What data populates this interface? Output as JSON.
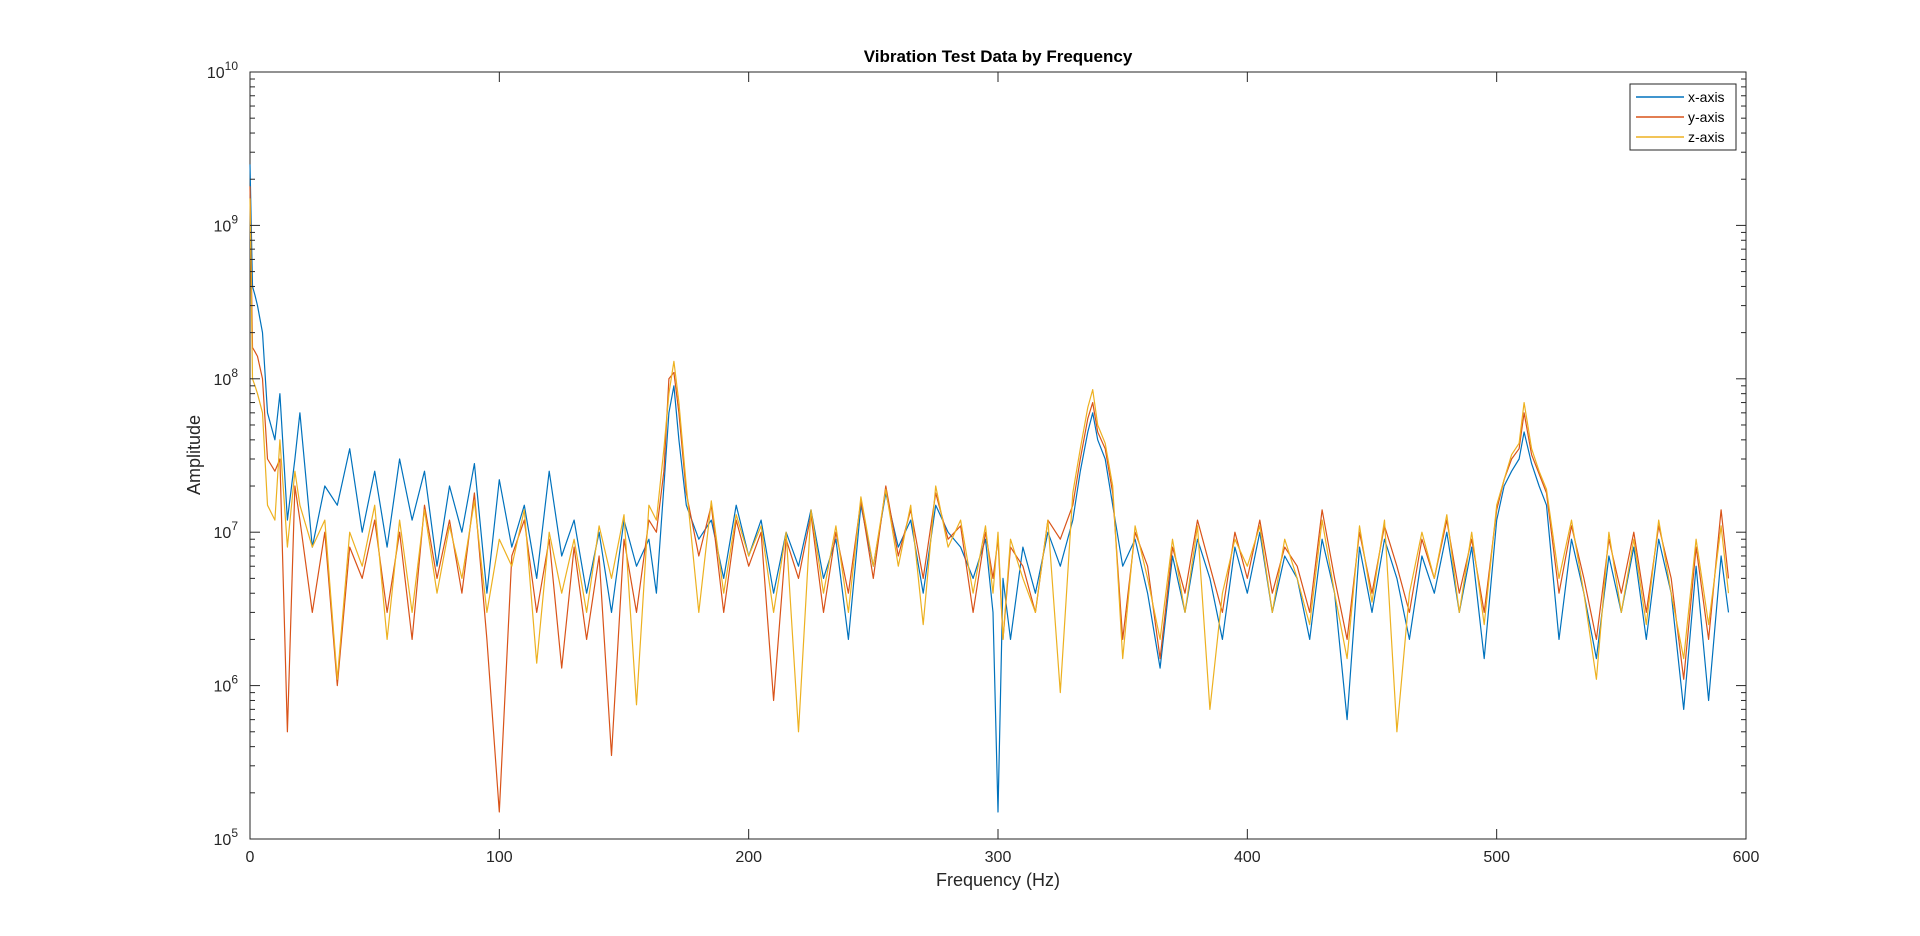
{
  "chart_data": {
    "type": "line",
    "title": "Vibration Test Data by Frequency",
    "xlabel": "Frequency (Hz)",
    "ylabel": "Amplitude",
    "xlim": [
      0,
      600
    ],
    "ylim": [
      100000,
      10000000000
    ],
    "yscale": "log",
    "grid": false,
    "legend_position": "top-right",
    "x_ticks": [
      0,
      100,
      200,
      300,
      400,
      500,
      600
    ],
    "y_ticks": [
      {
        "value": 100000,
        "base": "10",
        "exp": "5"
      },
      {
        "value": 1000000,
        "base": "10",
        "exp": "6"
      },
      {
        "value": 10000000,
        "base": "10",
        "exp": "7"
      },
      {
        "value": 100000000,
        "base": "10",
        "exp": "8"
      },
      {
        "value": 1000000000,
        "base": "10",
        "exp": "9"
      },
      {
        "value": 10000000000,
        "base": "10",
        "exp": "10"
      }
    ],
    "x": [
      0,
      1,
      2,
      3,
      5,
      7,
      10,
      12,
      15,
      18,
      20,
      25,
      30,
      35,
      40,
      45,
      50,
      55,
      60,
      65,
      70,
      75,
      80,
      85,
      90,
      95,
      100,
      105,
      110,
      115,
      120,
      125,
      130,
      135,
      140,
      145,
      150,
      155,
      160,
      163,
      166,
      168,
      170,
      172,
      175,
      180,
      185,
      190,
      195,
      200,
      205,
      210,
      215,
      220,
      225,
      230,
      235,
      240,
      245,
      250,
      255,
      260,
      265,
      270,
      275,
      280,
      285,
      290,
      295,
      298,
      300,
      302,
      305,
      310,
      315,
      320,
      325,
      330,
      333,
      336,
      338,
      340,
      343,
      346,
      350,
      355,
      360,
      365,
      370,
      375,
      380,
      385,
      390,
      395,
      400,
      405,
      410,
      415,
      420,
      425,
      430,
      435,
      440,
      445,
      450,
      455,
      460,
      465,
      470,
      475,
      480,
      485,
      490,
      495,
      500,
      503,
      506,
      509,
      511,
      514,
      517,
      520,
      525,
      530,
      535,
      540,
      545,
      550,
      555,
      560,
      565,
      570,
      575,
      580,
      585,
      590,
      593
    ],
    "series": [
      {
        "name": "x-axis",
        "color": "#0072BD",
        "values": [
          2500000000,
          400000000,
          350000000,
          300000000,
          200000000,
          60000000,
          40000000,
          80000000,
          12000000,
          30000000,
          60000000,
          8000000,
          20000000,
          15000000,
          35000000,
          10000000,
          25000000,
          8000000,
          30000000,
          12000000,
          25000000,
          6000000,
          20000000,
          10000000,
          28000000,
          4000000,
          22000000,
          8000000,
          15000000,
          5000000,
          25000000,
          7000000,
          12000000,
          4000000,
          10000000,
          3000000,
          12000000,
          6000000,
          9000000,
          4000000,
          20000000,
          60000000,
          90000000,
          40000000,
          15000000,
          9000000,
          12000000,
          5000000,
          15000000,
          7000000,
          12000000,
          4000000,
          10000000,
          6000000,
          14000000,
          5000000,
          9000000,
          2000000,
          15000000,
          6000000,
          18000000,
          8000000,
          12000000,
          4000000,
          15000000,
          10000000,
          8000000,
          5000000,
          9000000,
          3000000,
          150000,
          5000000,
          2000000,
          8000000,
          4000000,
          10000000,
          6000000,
          12000000,
          25000000,
          45000000,
          60000000,
          40000000,
          30000000,
          15000000,
          6000000,
          9000000,
          4000000,
          1300000,
          7000000,
          3000000,
          9000000,
          5000000,
          2000000,
          8000000,
          4000000,
          10000000,
          3000000,
          7000000,
          5000000,
          2000000,
          9000000,
          4000000,
          600000,
          8000000,
          3000000,
          9000000,
          5000000,
          2000000,
          7000000,
          4000000,
          10000000,
          3000000,
          8000000,
          1500000,
          12000000,
          20000000,
          25000000,
          30000000,
          45000000,
          28000000,
          20000000,
          15000000,
          2000000,
          9000000,
          4000000,
          1500000,
          7000000,
          3000000,
          8000000,
          2000000,
          9000000,
          4000000,
          700000,
          6000000,
          800000,
          7000000,
          3000000
        ]
      },
      {
        "name": "y-axis",
        "color": "#D95319",
        "values": [
          1800000000,
          160000000,
          150000000,
          140000000,
          100000000,
          30000000,
          25000000,
          30000000,
          500000,
          20000000,
          12000000,
          3000000,
          10000000,
          1000000,
          8000000,
          5000000,
          12000000,
          3000000,
          10000000,
          2000000,
          15000000,
          5000000,
          12000000,
          4000000,
          18000000,
          2000000,
          150000,
          7000000,
          12000000,
          3000000,
          9000000,
          1300000,
          8000000,
          2000000,
          7000000,
          350000,
          9000000,
          3000000,
          12000000,
          10000000,
          25000000,
          100000000,
          110000000,
          60000000,
          18000000,
          7000000,
          15000000,
          3000000,
          12000000,
          6000000,
          10000000,
          800000,
          9000000,
          5000000,
          13000000,
          3000000,
          10000000,
          4000000,
          16000000,
          5000000,
          20000000,
          7000000,
          14000000,
          5000000,
          18000000,
          9000000,
          11000000,
          3000000,
          10000000,
          5000000,
          9000000,
          2000000,
          8000000,
          6000000,
          3000000,
          12000000,
          9000000,
          15000000,
          30000000,
          55000000,
          70000000,
          45000000,
          35000000,
          18000000,
          2000000,
          10000000,
          6000000,
          1500000,
          8000000,
          4000000,
          12000000,
          6000000,
          3000000,
          10000000,
          5000000,
          12000000,
          4000000,
          8000000,
          6000000,
          3000000,
          14000000,
          5000000,
          2000000,
          10000000,
          4000000,
          11000000,
          6000000,
          3000000,
          9000000,
          5000000,
          12000000,
          4000000,
          9000000,
          3000000,
          14000000,
          22000000,
          30000000,
          35000000,
          60000000,
          32000000,
          24000000,
          18000000,
          4000000,
          11000000,
          5000000,
          2000000,
          9000000,
          4000000,
          10000000,
          3000000,
          11000000,
          5000000,
          1100000,
          8000000,
          2000000,
          14000000,
          5000000
        ]
      },
      {
        "name": "z-axis",
        "color": "#EDB120",
        "values": [
          1500000000,
          100000000,
          90000000,
          80000000,
          60000000,
          15000000,
          12000000,
          40000000,
          8000000,
          25000000,
          15000000,
          8000000,
          12000000,
          1100000,
          10000000,
          6000000,
          15000000,
          2000000,
          12000000,
          3000000,
          14000000,
          4000000,
          11000000,
          5000000,
          16000000,
          3000000,
          9000000,
          6000000,
          14000000,
          1400000,
          10000000,
          4000000,
          9000000,
          3000000,
          11000000,
          5000000,
          13000000,
          750000,
          15000000,
          12000000,
          35000000,
          80000000,
          130000000,
          70000000,
          20000000,
          3000000,
          16000000,
          4000000,
          13000000,
          7000000,
          11000000,
          3000000,
          10000000,
          500000,
          14000000,
          4000000,
          11000000,
          3000000,
          17000000,
          6000000,
          19000000,
          6000000,
          15000000,
          2500000,
          20000000,
          8000000,
          12000000,
          4000000,
          11000000,
          4000000,
          10000000,
          2000000,
          9000000,
          5000000,
          3000000,
          12000000,
          900000,
          18000000,
          35000000,
          65000000,
          85000000,
          50000000,
          38000000,
          20000000,
          1500000,
          11000000,
          5000000,
          2000000,
          9000000,
          3000000,
          11000000,
          700000,
          4000000,
          9000000,
          6000000,
          11000000,
          3000000,
          9000000,
          5000000,
          2500000,
          12000000,
          4000000,
          1500000,
          11000000,
          3500000,
          12000000,
          500000,
          4000000,
          10000000,
          5000000,
          13000000,
          3000000,
          10000000,
          2500000,
          15000000,
          22000000,
          32000000,
          38000000,
          70000000,
          35000000,
          25000000,
          19000000,
          5000000,
          12000000,
          4000000,
          1100000,
          10000000,
          3000000,
          9000000,
          2500000,
          12000000,
          4000000,
          1500000,
          9000000,
          2500000,
          11000000,
          4000000
        ]
      }
    ]
  }
}
